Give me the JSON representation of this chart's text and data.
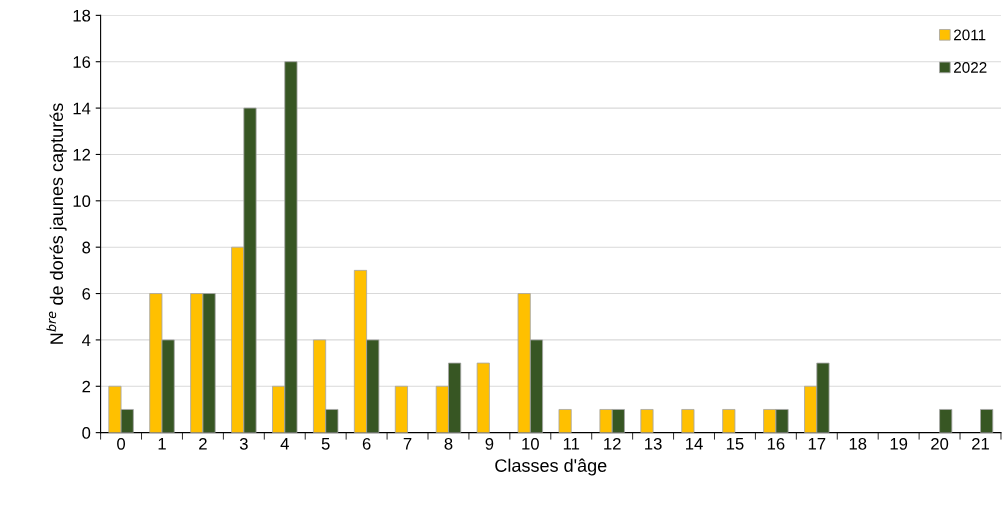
{
  "chart_data": {
    "type": "bar",
    "xlabel": "Classes d'âge",
    "ylabel": "N$^{bre}$ de dorés jaunes capturés",
    "categories": [
      "0",
      "1",
      "2",
      "3",
      "4",
      "5",
      "6",
      "7",
      "8",
      "9",
      "10",
      "11",
      "12",
      "13",
      "14",
      "15",
      "16",
      "17",
      "18",
      "19",
      "20",
      "21"
    ],
    "series": [
      {
        "name": "2011",
        "color": "#ffc000",
        "values": [
          2,
          6,
          6,
          8,
          2,
          4,
          7,
          2,
          2,
          3,
          6,
          1,
          1,
          1,
          1,
          1,
          1,
          2,
          null,
          null,
          null,
          null
        ]
      },
      {
        "name": "2022",
        "color": "#375623",
        "values": [
          1,
          4,
          6,
          14,
          16,
          1,
          4,
          null,
          3,
          null,
          4,
          null,
          1,
          null,
          null,
          null,
          1,
          3,
          null,
          null,
          1,
          1
        ]
      }
    ],
    "ylim": [
      0,
      18
    ],
    "yticks": [
      0,
      2,
      4,
      6,
      8,
      10,
      12,
      14,
      16,
      18
    ],
    "grid": "y",
    "legend": "top right"
  }
}
